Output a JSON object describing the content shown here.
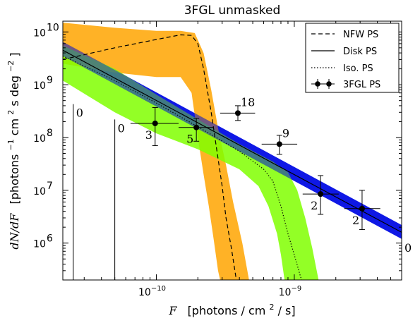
{
  "chart_data": {
    "type": "line",
    "title": "3FGL unmasked",
    "xlabel": {
      "var": "F",
      "rest": "[photons / cm",
      "sup": "2",
      "tail": " / s]"
    },
    "ylabel": {
      "var": "dN/dF",
      "text": "[photons",
      "sup1": "−1",
      "text2": " cm",
      "sup2": "2",
      "text3": " s deg",
      "sup3": "−2",
      "text4": "]"
    },
    "xscale": "log",
    "yscale": "log",
    "xlim": [
      2.1e-11,
      6e-09
    ],
    "ylim": [
      200000.0,
      16000000000.0
    ],
    "x_ticks": [
      {
        "value": 1e-10,
        "mant": "10",
        "exp": "−10"
      },
      {
        "value": 1e-09,
        "mant": "10",
        "exp": "−9"
      }
    ],
    "y_ticks": [
      {
        "value": 1000000.0,
        "mant": "10",
        "exp": "6"
      },
      {
        "value": 10000000.0,
        "mant": "10",
        "exp": "7"
      },
      {
        "value": 100000000.0,
        "mant": "10",
        "exp": "8"
      },
      {
        "value": 1000000000.0,
        "mant": "10",
        "exp": "9"
      },
      {
        "value": 10000000000.0,
        "mant": "10",
        "exp": "10"
      }
    ],
    "legend": {
      "position": "top-right",
      "entries": [
        {
          "label": "NFW PS",
          "style": "dashed"
        },
        {
          "label": "Disk PS",
          "style": "solid"
        },
        {
          "label": "Iso. PS",
          "style": "dotted"
        },
        {
          "label": "3FGL PS",
          "style": "errorbar"
        }
      ]
    },
    "series": [
      {
        "name": "NFW PS",
        "color": "#000000",
        "linestyle": "dashed",
        "line": [
          [
            2.1e-11,
            3000000000.0
          ],
          [
            5e-11,
            5000000000.0
          ],
          [
            1e-10,
            7200000000.0
          ],
          [
            1.5e-10,
            8800000000.0
          ],
          [
            1.8e-10,
            8600000000.0
          ],
          [
            2e-10,
            6000000000.0
          ],
          [
            2.2e-10,
            2000000000.0
          ],
          [
            2.5e-10,
            300000000.0
          ],
          [
            2.8e-10,
            40000000.0
          ],
          [
            3e-10,
            12000000.0
          ],
          [
            3.2e-10,
            3000000.0
          ],
          [
            3.5e-10,
            800000.0
          ],
          [
            3.8e-10,
            200000.0
          ]
        ],
        "band_color": "#ffa500",
        "band_upper": [
          [
            2.1e-11,
            15000000000.0
          ],
          [
            5e-11,
            12000000000.0
          ],
          [
            1e-10,
            10500000000.0
          ],
          [
            1.5e-10,
            10500000000.0
          ],
          [
            1.9e-10,
            9500000000.0
          ],
          [
            2.2e-10,
            4000000000.0
          ],
          [
            2.5e-10,
            800000000.0
          ],
          [
            2.8e-10,
            150000000.0
          ],
          [
            3.2e-10,
            30000000.0
          ],
          [
            3.6e-10,
            6000000.0
          ],
          [
            4.2e-10,
            1000000.0
          ],
          [
            4.7e-10,
            200000.0
          ]
        ],
        "band_lower": [
          [
            2.1e-11,
            2500000000.0
          ],
          [
            5e-11,
            1700000000.0
          ],
          [
            1e-10,
            1400000000.0
          ],
          [
            1.5e-10,
            1400000000.0
          ],
          [
            1.8e-10,
            700000000.0
          ],
          [
            2e-10,
            100000000.0
          ],
          [
            2.2e-10,
            20000000.0
          ],
          [
            2.4e-10,
            5000000.0
          ],
          [
            2.6e-10,
            1200000.0
          ],
          [
            2.8e-10,
            300000.0
          ],
          [
            2.9e-10,
            200000.0
          ]
        ]
      },
      {
        "name": "Disk PS",
        "color": "#000000",
        "linestyle": "solid",
        "line": [
          [
            2.1e-11,
            4500000000.0
          ],
          [
            6e-09,
            1600000.0
          ]
        ],
        "band_color": "#0000ff",
        "band_upper": [
          [
            2.1e-11,
            6500000000.0
          ],
          [
            6e-09,
            2200000.0
          ]
        ],
        "band_lower": [
          [
            2.1e-11,
            3500000000.0
          ],
          [
            6e-09,
            1200000.0
          ]
        ]
      },
      {
        "name": "Iso. PS",
        "color": "#000000",
        "linestyle": "dotted",
        "line": [
          [
            2.1e-11,
            3500000000.0
          ],
          [
            5e-11,
            1200000000.0
          ],
          [
            1e-10,
            450000000.0
          ],
          [
            2e-10,
            160000000.0
          ],
          [
            4e-10,
            55000000.0
          ],
          [
            6e-10,
            25000000.0
          ],
          [
            7e-10,
            15000000.0
          ],
          [
            8e-10,
            5000000.0
          ],
          [
            9e-10,
            1500000.0
          ],
          [
            1e-09,
            600000.0
          ],
          [
            1.1e-09,
            250000.0
          ],
          [
            1.13e-09,
            200000.0
          ]
        ],
        "band_color": "#80ff00",
        "band_upper": [
          [
            2.1e-11,
            5500000000.0
          ],
          [
            5e-11,
            2000000000.0
          ],
          [
            1e-10,
            650000000.0
          ],
          [
            2e-10,
            220000000.0
          ],
          [
            4e-10,
            75000000.0
          ],
          [
            7e-10,
            35000000.0
          ],
          [
            9e-10,
            22000000.0
          ],
          [
            1.05e-09,
            10000000.0
          ],
          [
            1.2e-09,
            3000000.0
          ],
          [
            1.35e-09,
            800000.0
          ],
          [
            1.5e-09,
            200000.0
          ]
        ],
        "band_lower": [
          [
            2.1e-11,
            1200000000.0
          ],
          [
            5e-11,
            300000000.0
          ],
          [
            1e-10,
            120000000.0
          ],
          [
            2e-10,
            60000000.0
          ],
          [
            4e-10,
            25000000.0
          ],
          [
            5.5e-10,
            12000000.0
          ],
          [
            6.5e-10,
            5000000.0
          ],
          [
            7.5e-10,
            1500000.0
          ],
          [
            8e-10,
            600000.0
          ],
          [
            8.5e-10,
            200000.0
          ]
        ]
      }
    ],
    "data_points": {
      "name": "3FGL PS",
      "points": [
        {
          "x": 9.8e-11,
          "y": 185000000.0,
          "xlo": 6.5e-11,
          "xhi": 1.45e-10,
          "ylo": 70000000.0,
          "yhi": 370000000.0,
          "count": "3"
        },
        {
          "x": 1.95e-10,
          "y": 155000000.0,
          "xlo": 1.45e-10,
          "xhi": 2.6e-10,
          "ylo": 85000000.0,
          "yhi": 230000000.0,
          "count": "5"
        },
        {
          "x": 3.9e-10,
          "y": 290000000.0,
          "xlo": 2.9e-10,
          "xhi": 5.2e-10,
          "ylo": 210000000.0,
          "yhi": 400000000.0,
          "count": "18"
        },
        {
          "x": 7.8e-10,
          "y": 75000000.0,
          "xlo": 5.8e-10,
          "xhi": 1.05e-09,
          "ylo": 48000000.0,
          "yhi": 110000000.0,
          "count": "9"
        },
        {
          "x": 1.55e-09,
          "y": 8500000.0,
          "xlo": 1.15e-09,
          "xhi": 2.1e-09,
          "ylo": 3500000.0,
          "yhi": 19000000.0,
          "count": "2"
        },
        {
          "x": 3.1e-09,
          "y": 4500000.0,
          "xlo": 2.3e-09,
          "xhi": 4.2e-09,
          "ylo": 1800000.0,
          "yhi": 10000000.0,
          "count": "2"
        }
      ],
      "upper_limits": [
        {
          "x": 2.5e-11,
          "y": 430000000.0,
          "count": "0"
        },
        {
          "x": 5e-11,
          "y": 220000000.0,
          "count": "0"
        },
        {
          "x": 6e-09,
          "y": 1200000.0,
          "count": "0"
        }
      ]
    }
  }
}
